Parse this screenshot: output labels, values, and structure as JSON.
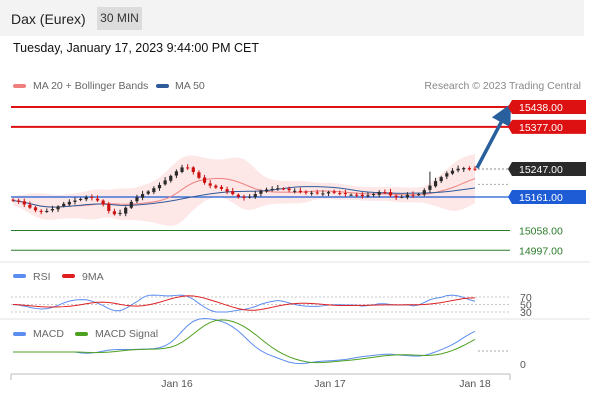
{
  "header": {
    "title": "Dax (Eurex)",
    "timeframe": "30 MIN"
  },
  "datetime": "Tuesday, January 17, 2023 9:44:00 PM CET",
  "legend": {
    "ma20": "MA 20 + Bollinger Bands",
    "ma50": "MA 50",
    "research": "Research © 2023 Trading Central",
    "rsi": "RSI",
    "rsi_ma": "9MA",
    "macd": "MACD",
    "macd_signal": "MACD Signal"
  },
  "colors": {
    "resistance": "#dd1111",
    "support": "#2a7a2a",
    "pivot": "#1e5cd6",
    "last": "#2a2a2a",
    "ma20": "#f08080",
    "ma50": "#2e5b9a",
    "rsi": "#5b8def",
    "rsi_ma": "#e02020",
    "macd": "#5b8def",
    "macd_signal": "#4ea020",
    "arrow": "#2a5f9e",
    "candle_up": "#2a2a2a",
    "candle_down": "#cc1111"
  },
  "chart_data": {
    "type": "candlestick",
    "instrument": "Dax (Eurex)",
    "interval": "30 MIN",
    "x_ticks": [
      "Jan 16",
      "Jan 17",
      "Jan 18"
    ],
    "price_levels": {
      "resistance": [
        "15438.00",
        "15377.00"
      ],
      "last": "15247.00",
      "pivot": "15161.00",
      "support": [
        "15058.00",
        "14997.00"
      ]
    },
    "rsi_levels": [
      "70",
      "50",
      "30"
    ],
    "macd_levels": [
      "0"
    ],
    "close_series": [
      15150,
      15146,
      15138,
      15128,
      15120,
      15116,
      15118,
      15124,
      15132,
      15140,
      15146,
      15150,
      15155,
      15160,
      15158,
      15150,
      15138,
      15118,
      15108,
      15112,
      15128,
      15146,
      15160,
      15170,
      15178,
      15188,
      15198,
      15212,
      15226,
      15240,
      15252,
      15250,
      15238,
      15220,
      15205,
      15196,
      15190,
      15186,
      15178,
      15170,
      15162,
      15158,
      15162,
      15170,
      15180,
      15184,
      15186,
      15188,
      15186,
      15182,
      15180,
      15176,
      15174,
      15174,
      15172,
      15172,
      15176,
      15174,
      15172,
      15170,
      15168,
      15166,
      15164,
      15166,
      15170,
      15176,
      15174,
      15166,
      15160,
      15162,
      15168,
      15166,
      15170,
      15182,
      15196,
      15210,
      15222,
      15234,
      15242,
      15248,
      15250,
      15246,
      15247
    ]
  }
}
